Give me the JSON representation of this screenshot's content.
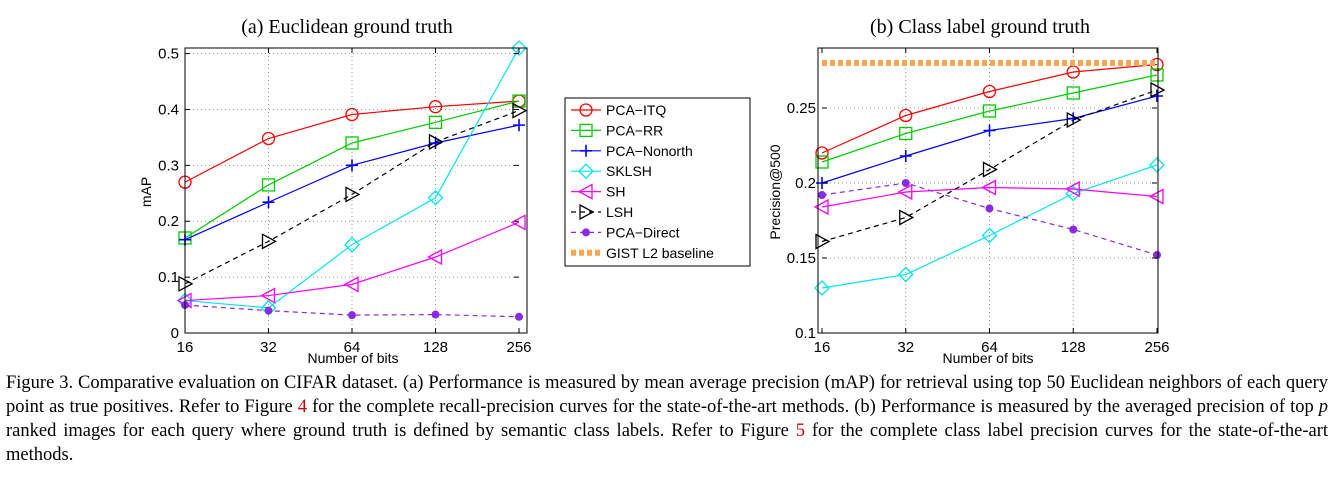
{
  "chart_data": [
    {
      "type": "line",
      "title": "(a) Euclidean ground truth",
      "xlabel": "Number of bits",
      "ylabel": "mAP",
      "x": [
        16,
        32,
        64,
        128,
        256
      ],
      "x_ticks": [
        "16",
        "32",
        "64",
        "128",
        "256"
      ],
      "x_scale": "log2",
      "ylim": [
        0,
        0.51
      ],
      "y_ticks": [
        "0",
        "0.1",
        "0.2",
        "0.3",
        "0.4",
        "0.5"
      ],
      "y_tick_values": [
        0,
        0.1,
        0.2,
        0.3,
        0.4,
        0.5
      ],
      "grid": "dotted",
      "series": [
        {
          "name": "PCA−ITQ",
          "values": [
            0.27,
            0.348,
            0.391,
            0.405,
            0.415
          ]
        },
        {
          "name": "PCA−RR",
          "values": [
            0.17,
            0.265,
            0.34,
            0.377,
            0.415
          ]
        },
        {
          "name": "PCA−Nonorth",
          "values": [
            0.167,
            0.234,
            0.3,
            0.34,
            0.372
          ]
        },
        {
          "name": "SKLSH",
          "values": [
            0.058,
            0.045,
            0.158,
            0.242,
            0.51
          ]
        },
        {
          "name": "SH",
          "values": [
            0.058,
            0.067,
            0.087,
            0.136,
            0.198
          ]
        },
        {
          "name": "LSH",
          "values": [
            0.088,
            0.164,
            0.248,
            0.342,
            0.398
          ]
        },
        {
          "name": "PCA−Direct",
          "values": [
            0.05,
            0.04,
            0.032,
            0.033,
            0.029
          ]
        }
      ]
    },
    {
      "type": "line",
      "title": "(b) Class label ground truth",
      "xlabel": "Number of bits",
      "ylabel": "Precision@500",
      "x": [
        16,
        32,
        64,
        128,
        256
      ],
      "x_ticks": [
        "16",
        "32",
        "64",
        "128",
        "256"
      ],
      "x_scale": "log2",
      "ylim": [
        0.1,
        0.29
      ],
      "y_ticks": [
        "0.1",
        "0.15",
        "0.2",
        "0.25"
      ],
      "y_tick_values": [
        0.1,
        0.15,
        0.2,
        0.25
      ],
      "grid": "dotted",
      "series": [
        {
          "name": "PCA−ITQ",
          "values": [
            0.22,
            0.245,
            0.261,
            0.274,
            0.279
          ]
        },
        {
          "name": "PCA−RR",
          "values": [
            0.214,
            0.233,
            0.248,
            0.26,
            0.272
          ]
        },
        {
          "name": "PCA−Nonorth",
          "values": [
            0.2,
            0.218,
            0.235,
            0.243,
            0.258
          ]
        },
        {
          "name": "SKLSH",
          "values": [
            0.13,
            0.139,
            0.165,
            0.193,
            0.212
          ]
        },
        {
          "name": "SH",
          "values": [
            0.184,
            0.194,
            0.197,
            0.196,
            0.191
          ]
        },
        {
          "name": "LSH",
          "values": [
            0.161,
            0.177,
            0.209,
            0.242,
            0.262
          ]
        },
        {
          "name": "PCA−Direct",
          "values": [
            0.192,
            0.2,
            0.183,
            0.169,
            0.152
          ]
        },
        {
          "name": "GIST L2 baseline",
          "values": [
            0.28,
            0.28,
            0.28,
            0.28,
            0.28
          ]
        }
      ]
    }
  ],
  "legend": {
    "placement": "between-plots",
    "items": [
      {
        "label": "PCA−ITQ",
        "color": "#ff0000",
        "marker": "circle",
        "dash": "solid"
      },
      {
        "label": "PCA−RR",
        "color": "#00cc00",
        "marker": "square",
        "dash": "solid"
      },
      {
        "label": "PCA−Nonorth",
        "color": "#0000ff",
        "marker": "plus",
        "dash": "solid"
      },
      {
        "label": "SKLSH",
        "color": "#00e5ee",
        "marker": "diamond",
        "dash": "solid"
      },
      {
        "label": "SH",
        "color": "#ff00ff",
        "marker": "triangle-left",
        "dash": "solid"
      },
      {
        "label": "LSH",
        "color": "#000000",
        "marker": "triangle-right",
        "dash": "dashed"
      },
      {
        "label": "PCA−Direct",
        "color": "#8a2be2",
        "marker": "dot",
        "dash": "dashed"
      },
      {
        "label": "GIST L2 baseline",
        "color": "#ffa54f",
        "marker": "none",
        "dash": "thick-dashed"
      }
    ]
  },
  "caption": {
    "label": "Figure 3.",
    "text_1": "Comparative evaluation on CIFAR dataset. (a) Performance is measured by mean average precision (mAP) for retrieval using top 50 Euclidean neighbors of each query point as true positives. Refer to Figure",
    "ref_1": "4",
    "text_2": "for the complete recall-precision curves for the state-of-the-art methods. (b) Performance is measured by the averaged precision of top",
    "var_p": "p",
    "text_3": "ranked images for each query where ground truth is defined by semantic class labels. Refer to Figure",
    "ref_2": "5",
    "text_4": "for the complete class label precision curves for the state-of-the-art methods."
  }
}
